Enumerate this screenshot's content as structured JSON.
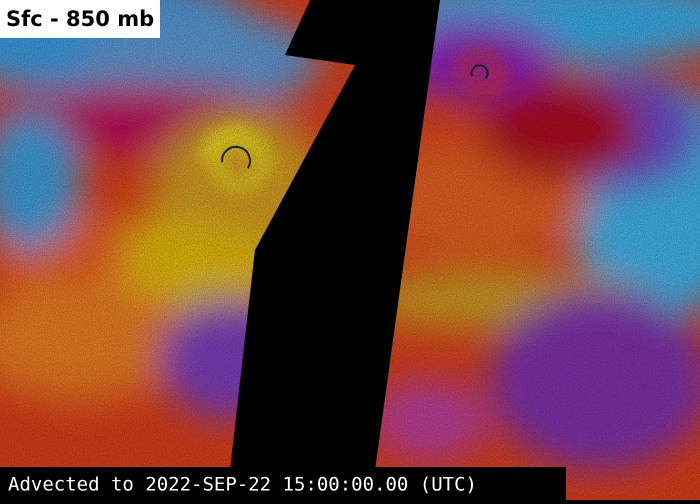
{
  "header": {
    "title": "Sfc - 850 mb"
  },
  "footer": {
    "timestamp": "Advected to 2022-SEP-22 15:00:00.00 (UTC)"
  }
}
